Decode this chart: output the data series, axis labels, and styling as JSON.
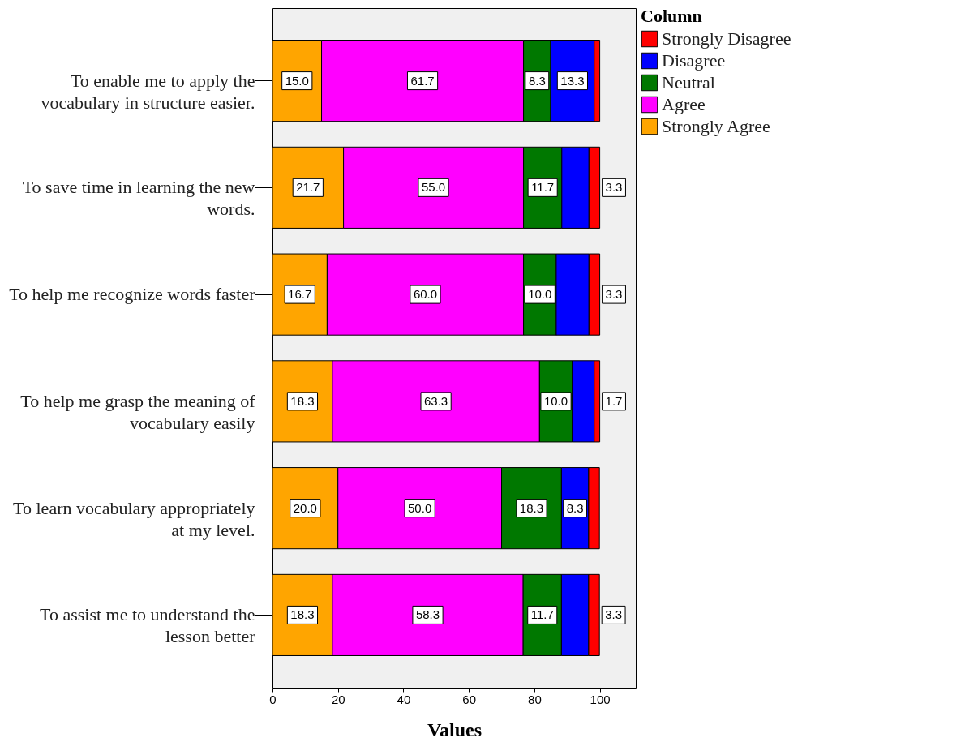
{
  "chart_data": {
    "type": "bar",
    "orientation": "horizontal",
    "stacked": true,
    "xlabel": "Values",
    "legend_title": "Column",
    "legend": "top right",
    "grid": false,
    "categories": [
      "To enable me to apply the vocabulary in structure easier.",
      "To save time in learning the new words.",
      "To help me recognize words faster",
      "To help me grasp the meaning of vocabulary easily",
      "To learn vocabulary appropriately at my level.",
      "To assist me to understand the lesson better"
    ],
    "xlim": [
      0,
      111
    ],
    "xticks": [
      0,
      20,
      40,
      60,
      80,
      100
    ],
    "series": [
      {
        "name": "Strongly Agree",
        "color": "#ffa500",
        "values": [
          15.0,
          21.7,
          16.7,
          18.3,
          20.0,
          18.3
        ],
        "value_labels": [
          "15.0",
          "21.7",
          "16.7",
          "18.3",
          "20.0",
          "18.3"
        ]
      },
      {
        "name": "Agree",
        "color": "#ff00ff",
        "values": [
          61.7,
          55.0,
          60.0,
          63.3,
          50.0,
          58.3
        ],
        "value_labels": [
          "61.7",
          "55.0",
          "60.0",
          "63.3",
          "50.0",
          "58.3"
        ]
      },
      {
        "name": "Neutral",
        "color": "#007800",
        "values": [
          8.3,
          11.7,
          10.0,
          10.0,
          18.3,
          11.7
        ],
        "value_labels": [
          "8.3",
          "11.7",
          "10.0",
          "10.0",
          "18.3",
          "11.7"
        ]
      },
      {
        "name": "Disagree",
        "color": "#0000ff",
        "values": [
          13.3,
          8.3,
          10.0,
          6.7,
          8.3,
          8.3
        ],
        "value_labels": [
          "13.3",
          null,
          null,
          null,
          "8.3",
          null
        ]
      },
      {
        "name": "Strongly Disagree",
        "color": "#ff0000",
        "values": [
          1.7,
          3.3,
          3.3,
          1.7,
          3.3,
          3.3
        ],
        "value_labels": [
          null,
          "3.3",
          "3.3",
          "1.7",
          null,
          "3.3"
        ]
      }
    ]
  }
}
